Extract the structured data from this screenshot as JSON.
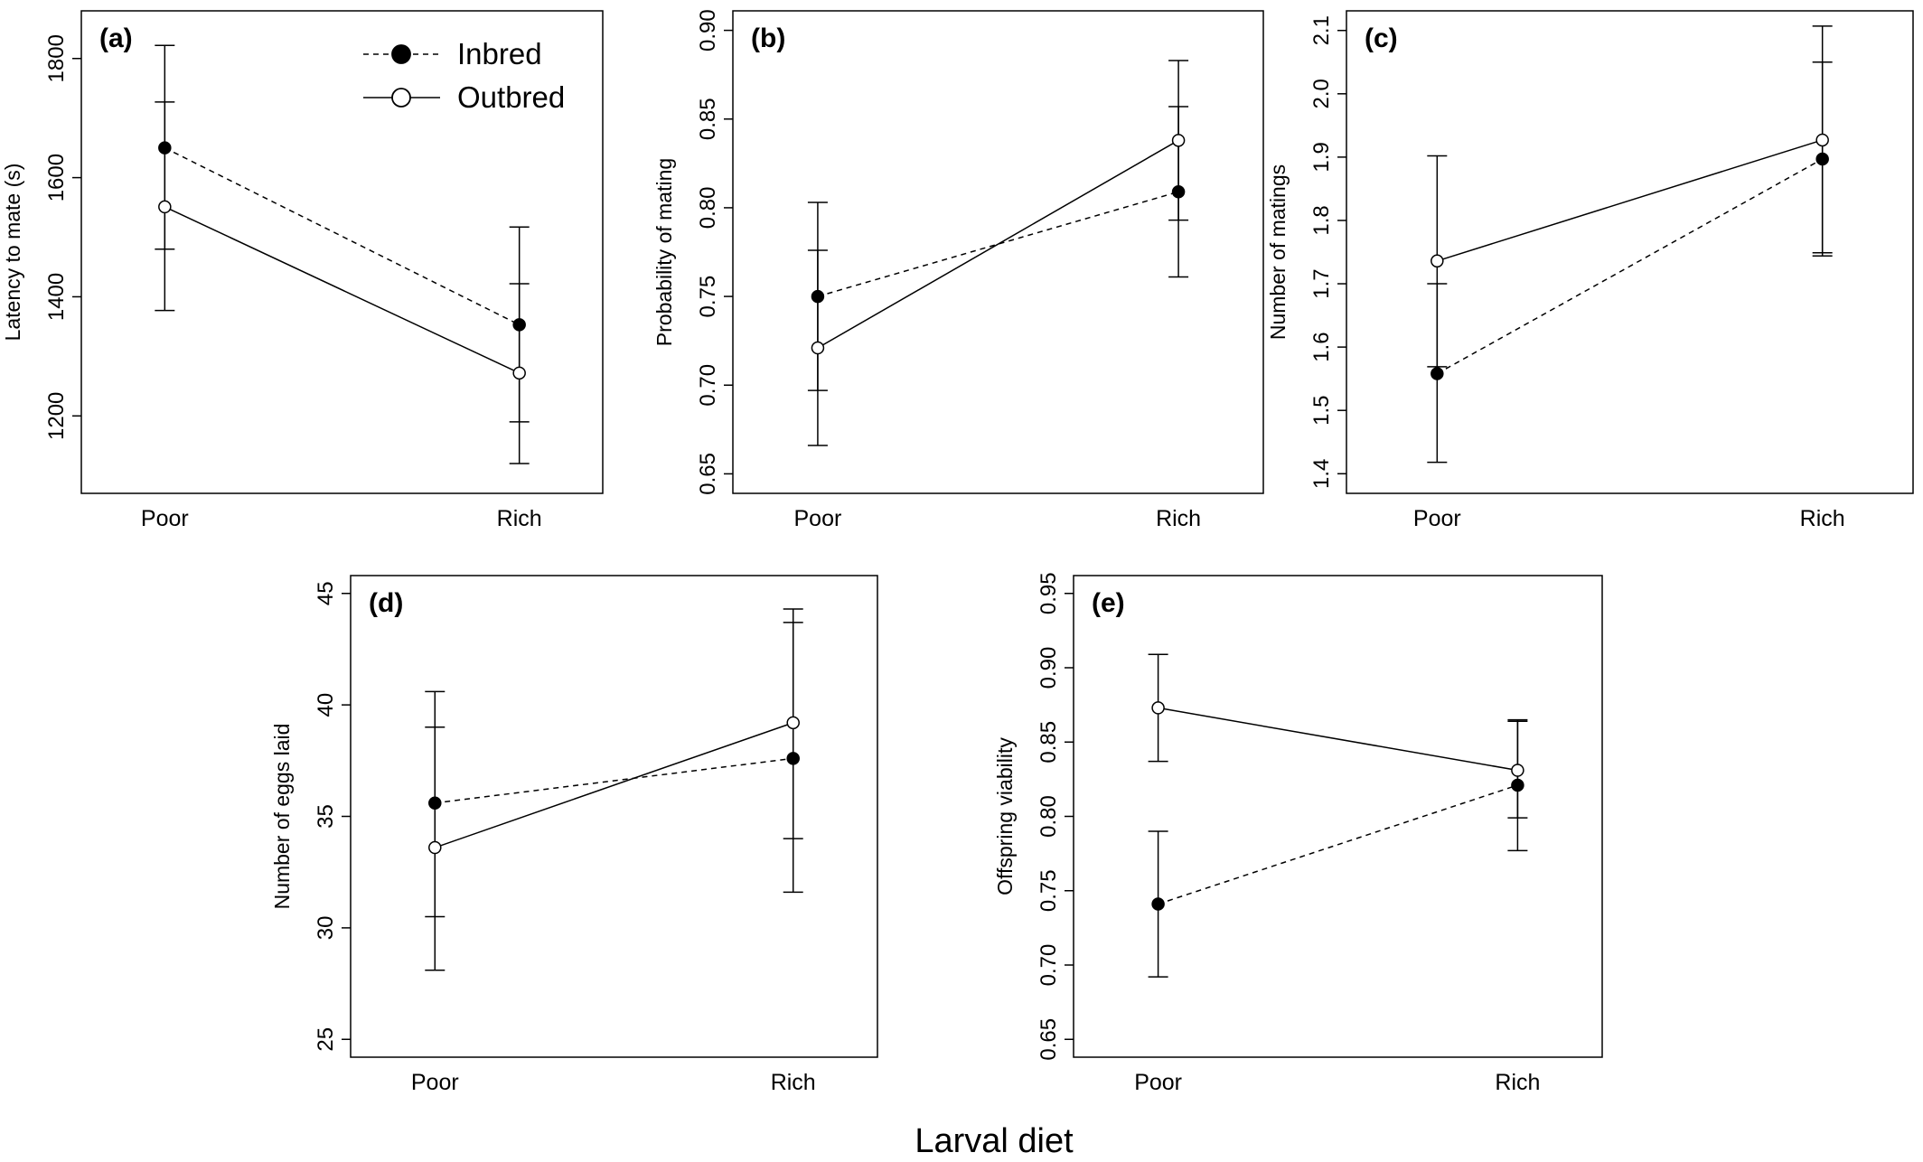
{
  "figure": {
    "xlabel": "Larval diet"
  },
  "legend": {
    "items": [
      {
        "label": "Inbred",
        "style": "dashed",
        "marker": "filled"
      },
      {
        "label": "Outbred",
        "style": "solid",
        "marker": "open"
      }
    ]
  },
  "chart_data": [
    {
      "type": "line",
      "panel": "(a)",
      "ylabel": "Latency to mate (s)",
      "categories": [
        "Poor",
        "Rich"
      ],
      "ylim": [
        1070,
        1880
      ],
      "yticks": [
        1200,
        1400,
        1600,
        1800
      ],
      "ytick_labels": [
        "1200",
        "1400",
        "1600",
        "1800"
      ],
      "series": [
        {
          "name": "Inbred",
          "values": [
            1650,
            1353
          ],
          "lower": [
            1480,
            1190
          ],
          "upper": [
            1822,
            1517
          ]
        },
        {
          "name": "Outbred",
          "values": [
            1551,
            1272
          ],
          "lower": [
            1377,
            1120
          ],
          "upper": [
            1727,
            1422
          ]
        }
      ]
    },
    {
      "type": "line",
      "panel": "(b)",
      "ylabel": "Probability of mating",
      "categories": [
        "Poor",
        "Rich"
      ],
      "ylim": [
        0.639,
        0.911
      ],
      "yticks": [
        0.65,
        0.7,
        0.75,
        0.8,
        0.85,
        0.9
      ],
      "ytick_labels": [
        "0.65",
        "0.70",
        "0.75",
        "0.80",
        "0.85",
        "0.90"
      ],
      "series": [
        {
          "name": "Inbred",
          "values": [
            0.75,
            0.809
          ],
          "lower": [
            0.697,
            0.761
          ],
          "upper": [
            0.803,
            0.857
          ]
        },
        {
          "name": "Outbred",
          "values": [
            0.721,
            0.838
          ],
          "lower": [
            0.666,
            0.793
          ],
          "upper": [
            0.776,
            0.883
          ]
        }
      ]
    },
    {
      "type": "line",
      "panel": "(c)",
      "ylabel": "Number of matings",
      "categories": [
        "Poor",
        "Rich"
      ],
      "ylim": [
        1.369,
        2.131
      ],
      "yticks": [
        1.4,
        1.5,
        1.6,
        1.7,
        1.8,
        1.9,
        2.0,
        2.1
      ],
      "ytick_labels": [
        "1.4",
        "1.5",
        "1.6",
        "1.7",
        "1.8",
        "1.9",
        "2.0",
        "2.1"
      ],
      "series": [
        {
          "name": "Inbred",
          "values": [
            1.558,
            1.897
          ],
          "lower": [
            1.418,
            1.744
          ],
          "upper": [
            1.7,
            2.05
          ]
        },
        {
          "name": "Outbred",
          "values": [
            1.736,
            1.927
          ],
          "lower": [
            1.569,
            1.749
          ],
          "upper": [
            1.902,
            2.107
          ]
        }
      ]
    },
    {
      "type": "line",
      "panel": "(d)",
      "ylabel": "Number of eggs laid",
      "categories": [
        "Poor",
        "Rich"
      ],
      "ylim": [
        24.2,
        45.8
      ],
      "yticks": [
        25,
        30,
        35,
        40,
        45
      ],
      "ytick_labels": [
        "25",
        "30",
        "35",
        "40",
        "45"
      ],
      "series": [
        {
          "name": "Inbred",
          "values": [
            35.6,
            37.6
          ],
          "lower": [
            30.5,
            31.6
          ],
          "upper": [
            40.6,
            43.7
          ]
        },
        {
          "name": "Outbred",
          "values": [
            33.6,
            39.2
          ],
          "lower": [
            28.1,
            34.0
          ],
          "upper": [
            39.0,
            44.3
          ]
        }
      ]
    },
    {
      "type": "line",
      "panel": "(e)",
      "ylabel": "Offspring viability",
      "categories": [
        "Poor",
        "Rich"
      ],
      "ylim": [
        0.638,
        0.962
      ],
      "yticks": [
        0.65,
        0.7,
        0.75,
        0.8,
        0.85,
        0.9,
        0.95
      ],
      "ytick_labels": [
        "0.65",
        "0.70",
        "0.75",
        "0.80",
        "0.85",
        "0.90",
        "0.95"
      ],
      "series": [
        {
          "name": "Inbred",
          "values": [
            0.741,
            0.821
          ],
          "lower": [
            0.692,
            0.777
          ],
          "upper": [
            0.79,
            0.865
          ]
        },
        {
          "name": "Outbred",
          "values": [
            0.873,
            0.831
          ],
          "lower": [
            0.837,
            0.799
          ],
          "upper": [
            0.909,
            0.864
          ]
        }
      ]
    }
  ]
}
